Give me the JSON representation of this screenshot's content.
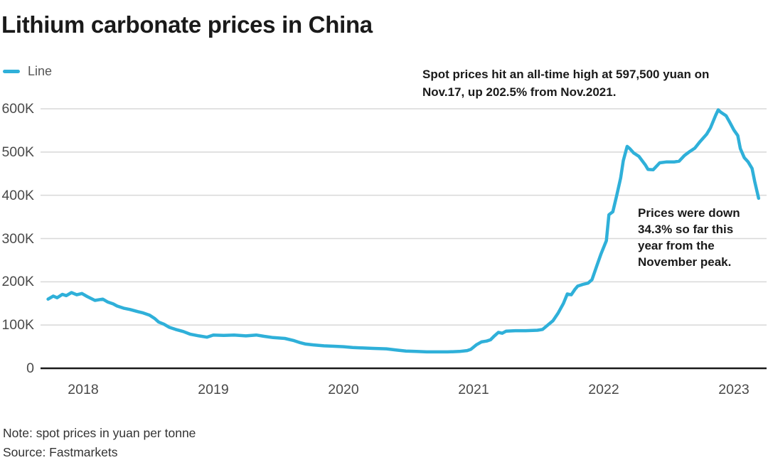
{
  "header": {
    "title": "Lithium carbonate prices in China"
  },
  "legend": {
    "label": "Line",
    "swatch_color": "#2fb0d9"
  },
  "annotations": {
    "peak_note": {
      "lines": [
        "Spot prices hit an all-time high at 597,500 yuan on",
        "Nov.17, up 202.5% from Nov.2021."
      ]
    },
    "decline_note": {
      "lines": [
        "Prices were down",
        "34.3% so far this",
        "year from the",
        "November peak."
      ]
    }
  },
  "footer": {
    "note": "Note: spot prices in yuan per tonne",
    "source": "Source: Fastmarkets"
  },
  "colors": {
    "line": "#2fb0d9",
    "grid": "#d8d8d8",
    "zero_axis": "#1a1a1a",
    "tick_text": "#4a4a4a",
    "title_text": "#1a1a1a"
  },
  "chart_data": {
    "type": "line",
    "title": "Lithium carbonate prices in China",
    "unit": "yuan per tonne",
    "value_scale": "thousands of yuan (K)",
    "grid": "horizontal",
    "legend_position": "top-left",
    "x_axis": {
      "ticks": [
        2018,
        2019,
        2020,
        2021,
        2022,
        2023
      ],
      "range": [
        2017.67,
        2023.25
      ]
    },
    "y_axis": {
      "tick_labels": [
        "0",
        "100K",
        "200K",
        "300K",
        "400K",
        "500K",
        "600K"
      ],
      "tick_values": [
        0,
        100,
        200,
        300,
        400,
        500,
        600
      ],
      "range": [
        0,
        640
      ]
    },
    "key_values": {
      "all_time_high_yuan": 597500,
      "all_time_high_date": "Nov.17",
      "rise_from_nov_2021_pct": 202.5,
      "decline_ytd_from_peak_pct": 34.3
    },
    "series": [
      {
        "name": "Line",
        "color": "#2fb0d9",
        "points": [
          [
            2017.73,
            160
          ],
          [
            2017.77,
            167
          ],
          [
            2017.8,
            163
          ],
          [
            2017.84,
            171
          ],
          [
            2017.87,
            168
          ],
          [
            2017.91,
            175
          ],
          [
            2017.95,
            170
          ],
          [
            2017.99,
            173
          ],
          [
            2018.03,
            166
          ],
          [
            2018.09,
            157
          ],
          [
            2018.15,
            160
          ],
          [
            2018.19,
            153
          ],
          [
            2018.23,
            149
          ],
          [
            2018.26,
            144
          ],
          [
            2018.31,
            139
          ],
          [
            2018.36,
            136
          ],
          [
            2018.42,
            131
          ],
          [
            2018.46,
            128
          ],
          [
            2018.51,
            123
          ],
          [
            2018.55,
            115
          ],
          [
            2018.58,
            107
          ],
          [
            2018.62,
            102
          ],
          [
            2018.66,
            95
          ],
          [
            2018.71,
            90
          ],
          [
            2018.77,
            85
          ],
          [
            2018.82,
            79
          ],
          [
            2018.89,
            75
          ],
          [
            2018.95,
            72
          ],
          [
            2019.0,
            77
          ],
          [
            2019.08,
            76
          ],
          [
            2019.16,
            77
          ],
          [
            2019.25,
            75
          ],
          [
            2019.33,
            77
          ],
          [
            2019.39,
            74
          ],
          [
            2019.46,
            71
          ],
          [
            2019.55,
            69
          ],
          [
            2019.62,
            64
          ],
          [
            2019.67,
            59
          ],
          [
            2019.71,
            56
          ],
          [
            2019.77,
            54
          ],
          [
            2019.85,
            52
          ],
          [
            2019.93,
            51
          ],
          [
            2020.0,
            50
          ],
          [
            2020.07,
            48
          ],
          [
            2020.15,
            47
          ],
          [
            2020.23,
            46
          ],
          [
            2020.33,
            45
          ],
          [
            2020.41,
            42
          ],
          [
            2020.48,
            40
          ],
          [
            2020.56,
            39
          ],
          [
            2020.64,
            38
          ],
          [
            2020.72,
            38
          ],
          [
            2020.8,
            38
          ],
          [
            2020.89,
            39
          ],
          [
            2020.95,
            41
          ],
          [
            2020.98,
            44
          ],
          [
            2021.02,
            54
          ],
          [
            2021.06,
            61
          ],
          [
            2021.1,
            63
          ],
          [
            2021.13,
            66
          ],
          [
            2021.16,
            75
          ],
          [
            2021.19,
            83
          ],
          [
            2021.22,
            81
          ],
          [
            2021.25,
            86
          ],
          [
            2021.32,
            87
          ],
          [
            2021.4,
            87
          ],
          [
            2021.49,
            88
          ],
          [
            2021.53,
            90
          ],
          [
            2021.57,
            100
          ],
          [
            2021.61,
            110
          ],
          [
            2021.65,
            128
          ],
          [
            2021.69,
            150
          ],
          [
            2021.72,
            172
          ],
          [
            2021.75,
            170
          ],
          [
            2021.78,
            183
          ],
          [
            2021.8,
            190
          ],
          [
            2021.84,
            194
          ],
          [
            2021.88,
            197
          ],
          [
            2021.91,
            205
          ],
          [
            2021.95,
            240
          ],
          [
            2021.98,
            265
          ],
          [
            2022.02,
            295
          ],
          [
            2022.04,
            355
          ],
          [
            2022.07,
            362
          ],
          [
            2022.1,
            400
          ],
          [
            2022.13,
            440
          ],
          [
            2022.15,
            480
          ],
          [
            2022.18,
            513
          ],
          [
            2022.2,
            508
          ],
          [
            2022.23,
            498
          ],
          [
            2022.27,
            490
          ],
          [
            2022.32,
            470
          ],
          [
            2022.34,
            460
          ],
          [
            2022.38,
            459
          ],
          [
            2022.43,
            475
          ],
          [
            2022.48,
            477
          ],
          [
            2022.54,
            477
          ],
          [
            2022.58,
            479
          ],
          [
            2022.62,
            492
          ],
          [
            2022.66,
            501
          ],
          [
            2022.7,
            509
          ],
          [
            2022.74,
            524
          ],
          [
            2022.79,
            541
          ],
          [
            2022.82,
            556
          ],
          [
            2022.86,
            585
          ],
          [
            2022.88,
            597.5
          ],
          [
            2022.9,
            592
          ],
          [
            2022.94,
            584
          ],
          [
            2022.97,
            568
          ],
          [
            2023.0,
            551
          ],
          [
            2023.03,
            538
          ],
          [
            2023.05,
            508
          ],
          [
            2023.08,
            487
          ],
          [
            2023.11,
            477
          ],
          [
            2023.14,
            462
          ],
          [
            2023.16,
            432
          ],
          [
            2023.19,
            393
          ]
        ]
      }
    ],
    "callouts": [
      {
        "text": "Spot prices hit an all-time high at 597,500 yuan on Nov.17, up 202.5% from Nov.2021.",
        "position": "top-right"
      },
      {
        "text": "Prices were down 34.3% so far this year from the November peak.",
        "position": "right-middle"
      }
    ]
  }
}
